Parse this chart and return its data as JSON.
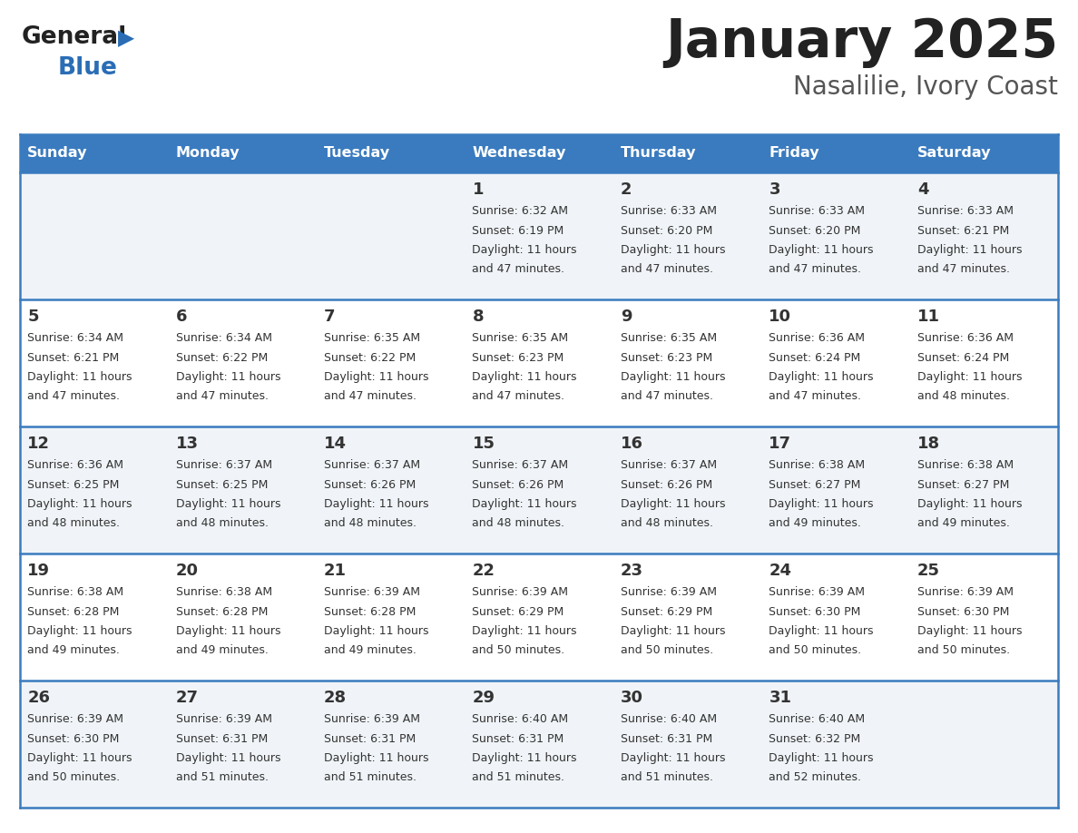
{
  "title": "January 2025",
  "subtitle": "Nasalilie, Ivory Coast",
  "days_of_week": [
    "Sunday",
    "Monday",
    "Tuesday",
    "Wednesday",
    "Thursday",
    "Friday",
    "Saturday"
  ],
  "header_bg": "#3A7BBF",
  "header_text": "#FFFFFF",
  "cell_bg_even": "#F0F4F8",
  "cell_bg_odd": "#FFFFFF",
  "cell_text": "#333333",
  "border_color": "#3A7BBF",
  "title_color": "#222222",
  "subtitle_color": "#555555",
  "logo_general_color": "#222222",
  "logo_blue_color": "#2A6DB5",
  "weeks": [
    [
      {
        "day": null,
        "sunrise": null,
        "sunset": null,
        "daylight_line1": null,
        "daylight_line2": null
      },
      {
        "day": null,
        "sunrise": null,
        "sunset": null,
        "daylight_line1": null,
        "daylight_line2": null
      },
      {
        "day": null,
        "sunrise": null,
        "sunset": null,
        "daylight_line1": null,
        "daylight_line2": null
      },
      {
        "day": 1,
        "sunrise": "6:32 AM",
        "sunset": "6:19 PM",
        "daylight_line1": "Daylight: 11 hours",
        "daylight_line2": "and 47 minutes."
      },
      {
        "day": 2,
        "sunrise": "6:33 AM",
        "sunset": "6:20 PM",
        "daylight_line1": "Daylight: 11 hours",
        "daylight_line2": "and 47 minutes."
      },
      {
        "day": 3,
        "sunrise": "6:33 AM",
        "sunset": "6:20 PM",
        "daylight_line1": "Daylight: 11 hours",
        "daylight_line2": "and 47 minutes."
      },
      {
        "day": 4,
        "sunrise": "6:33 AM",
        "sunset": "6:21 PM",
        "daylight_line1": "Daylight: 11 hours",
        "daylight_line2": "and 47 minutes."
      }
    ],
    [
      {
        "day": 5,
        "sunrise": "6:34 AM",
        "sunset": "6:21 PM",
        "daylight_line1": "Daylight: 11 hours",
        "daylight_line2": "and 47 minutes."
      },
      {
        "day": 6,
        "sunrise": "6:34 AM",
        "sunset": "6:22 PM",
        "daylight_line1": "Daylight: 11 hours",
        "daylight_line2": "and 47 minutes."
      },
      {
        "day": 7,
        "sunrise": "6:35 AM",
        "sunset": "6:22 PM",
        "daylight_line1": "Daylight: 11 hours",
        "daylight_line2": "and 47 minutes."
      },
      {
        "day": 8,
        "sunrise": "6:35 AM",
        "sunset": "6:23 PM",
        "daylight_line1": "Daylight: 11 hours",
        "daylight_line2": "and 47 minutes."
      },
      {
        "day": 9,
        "sunrise": "6:35 AM",
        "sunset": "6:23 PM",
        "daylight_line1": "Daylight: 11 hours",
        "daylight_line2": "and 47 minutes."
      },
      {
        "day": 10,
        "sunrise": "6:36 AM",
        "sunset": "6:24 PM",
        "daylight_line1": "Daylight: 11 hours",
        "daylight_line2": "and 47 minutes."
      },
      {
        "day": 11,
        "sunrise": "6:36 AM",
        "sunset": "6:24 PM",
        "daylight_line1": "Daylight: 11 hours",
        "daylight_line2": "and 48 minutes."
      }
    ],
    [
      {
        "day": 12,
        "sunrise": "6:36 AM",
        "sunset": "6:25 PM",
        "daylight_line1": "Daylight: 11 hours",
        "daylight_line2": "and 48 minutes."
      },
      {
        "day": 13,
        "sunrise": "6:37 AM",
        "sunset": "6:25 PM",
        "daylight_line1": "Daylight: 11 hours",
        "daylight_line2": "and 48 minutes."
      },
      {
        "day": 14,
        "sunrise": "6:37 AM",
        "sunset": "6:26 PM",
        "daylight_line1": "Daylight: 11 hours",
        "daylight_line2": "and 48 minutes."
      },
      {
        "day": 15,
        "sunrise": "6:37 AM",
        "sunset": "6:26 PM",
        "daylight_line1": "Daylight: 11 hours",
        "daylight_line2": "and 48 minutes."
      },
      {
        "day": 16,
        "sunrise": "6:37 AM",
        "sunset": "6:26 PM",
        "daylight_line1": "Daylight: 11 hours",
        "daylight_line2": "and 48 minutes."
      },
      {
        "day": 17,
        "sunrise": "6:38 AM",
        "sunset": "6:27 PM",
        "daylight_line1": "Daylight: 11 hours",
        "daylight_line2": "and 49 minutes."
      },
      {
        "day": 18,
        "sunrise": "6:38 AM",
        "sunset": "6:27 PM",
        "daylight_line1": "Daylight: 11 hours",
        "daylight_line2": "and 49 minutes."
      }
    ],
    [
      {
        "day": 19,
        "sunrise": "6:38 AM",
        "sunset": "6:28 PM",
        "daylight_line1": "Daylight: 11 hours",
        "daylight_line2": "and 49 minutes."
      },
      {
        "day": 20,
        "sunrise": "6:38 AM",
        "sunset": "6:28 PM",
        "daylight_line1": "Daylight: 11 hours",
        "daylight_line2": "and 49 minutes."
      },
      {
        "day": 21,
        "sunrise": "6:39 AM",
        "sunset": "6:28 PM",
        "daylight_line1": "Daylight: 11 hours",
        "daylight_line2": "and 49 minutes."
      },
      {
        "day": 22,
        "sunrise": "6:39 AM",
        "sunset": "6:29 PM",
        "daylight_line1": "Daylight: 11 hours",
        "daylight_line2": "and 50 minutes."
      },
      {
        "day": 23,
        "sunrise": "6:39 AM",
        "sunset": "6:29 PM",
        "daylight_line1": "Daylight: 11 hours",
        "daylight_line2": "and 50 minutes."
      },
      {
        "day": 24,
        "sunrise": "6:39 AM",
        "sunset": "6:30 PM",
        "daylight_line1": "Daylight: 11 hours",
        "daylight_line2": "and 50 minutes."
      },
      {
        "day": 25,
        "sunrise": "6:39 AM",
        "sunset": "6:30 PM",
        "daylight_line1": "Daylight: 11 hours",
        "daylight_line2": "and 50 minutes."
      }
    ],
    [
      {
        "day": 26,
        "sunrise": "6:39 AM",
        "sunset": "6:30 PM",
        "daylight_line1": "Daylight: 11 hours",
        "daylight_line2": "and 50 minutes."
      },
      {
        "day": 27,
        "sunrise": "6:39 AM",
        "sunset": "6:31 PM",
        "daylight_line1": "Daylight: 11 hours",
        "daylight_line2": "and 51 minutes."
      },
      {
        "day": 28,
        "sunrise": "6:39 AM",
        "sunset": "6:31 PM",
        "daylight_line1": "Daylight: 11 hours",
        "daylight_line2": "and 51 minutes."
      },
      {
        "day": 29,
        "sunrise": "6:40 AM",
        "sunset": "6:31 PM",
        "daylight_line1": "Daylight: 11 hours",
        "daylight_line2": "and 51 minutes."
      },
      {
        "day": 30,
        "sunrise": "6:40 AM",
        "sunset": "6:31 PM",
        "daylight_line1": "Daylight: 11 hours",
        "daylight_line2": "and 51 minutes."
      },
      {
        "day": 31,
        "sunrise": "6:40 AM",
        "sunset": "6:32 PM",
        "daylight_line1": "Daylight: 11 hours",
        "daylight_line2": "and 52 minutes."
      },
      {
        "day": null,
        "sunrise": null,
        "sunset": null,
        "daylight_line1": null,
        "daylight_line2": null
      }
    ]
  ]
}
